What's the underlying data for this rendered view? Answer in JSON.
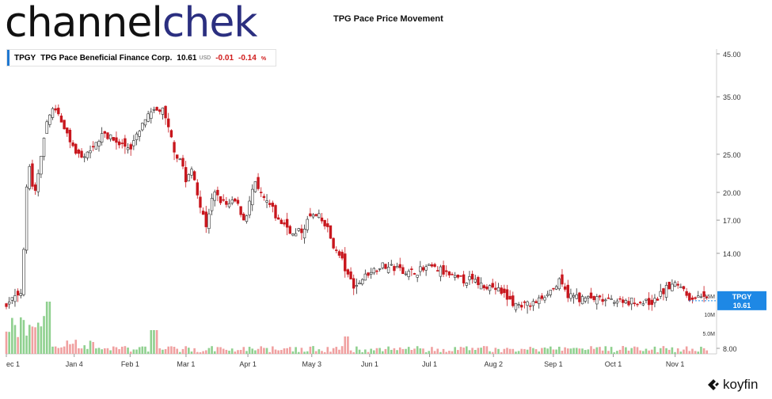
{
  "brand": {
    "name_part1": "channel",
    "name_part2": "chek"
  },
  "chart_title": "TPG Pace Price Movement",
  "quote": {
    "symbol": "TPGY",
    "company": "TPG Pace Beneficial Finance Corp.",
    "price": "10.61",
    "currency": "USD",
    "change": "-0.01",
    "change_pct": "-0.14",
    "pct_sign": "%"
  },
  "price_tag": {
    "symbol": "TPGY",
    "price": "10.61"
  },
  "footer_brand": "koyfin",
  "chart_data": {
    "type": "candlestick",
    "title": "TPG Pace Price Movement",
    "y_scale": "log",
    "y_ticks": [
      45.0,
      35.0,
      25.0,
      20.0,
      17.0,
      14.0,
      8.0
    ],
    "y_tick_labels": [
      "45.00",
      "35.00",
      "25.00",
      "20.00",
      "17.00",
      "14.00",
      "8.00"
    ],
    "volume_ticks": [
      "15M",
      "10M",
      "5.0M"
    ],
    "x_tick_labels": [
      "ec 1",
      "Jan 4",
      "Feb 1",
      "Mar 1",
      "Apr 1",
      "May 3",
      "Jun 1",
      "Jul 1",
      "Aug 2",
      "Sep 1",
      "Oct 1",
      "Nov 1"
    ],
    "price_path": [
      [
        "Dec 1",
        10.3
      ],
      [
        "Dec 5",
        10.9
      ],
      [
        "Dec 9",
        11.2
      ],
      [
        "Dec 12",
        24.5
      ],
      [
        "Dec 15",
        19.0
      ],
      [
        "Dec 19",
        26.0
      ],
      [
        "Dec 22",
        31.0
      ],
      [
        "Dec 26",
        33.0
      ],
      [
        "Dec 30",
        29.0
      ],
      [
        "Jan 4",
        25.5
      ],
      [
        "Jan 8",
        24.0
      ],
      [
        "Jan 13",
        26.5
      ],
      [
        "Jan 18",
        28.0
      ],
      [
        "Jan 22",
        27.5
      ],
      [
        "Jan 27",
        26.5
      ],
      [
        "Feb 1",
        26.0
      ],
      [
        "Feb 5",
        28.0
      ],
      [
        "Feb 9",
        31.0
      ],
      [
        "Feb 13",
        32.0
      ],
      [
        "Feb 17",
        32.5
      ],
      [
        "Feb 20",
        29.0
      ],
      [
        "Feb 24",
        25.0
      ],
      [
        "Feb 27",
        24.0
      ],
      [
        "Mar 1",
        21.0
      ],
      [
        "Mar 4",
        23.0
      ],
      [
        "Mar 8",
        18.5
      ],
      [
        "Mar 11",
        16.5
      ],
      [
        "Mar 15",
        20.0
      ],
      [
        "Mar 18",
        19.0
      ],
      [
        "Mar 22",
        18.5
      ],
      [
        "Mar 26",
        19.0
      ],
      [
        "Mar 30",
        17.0
      ],
      [
        "Apr 1",
        18.0
      ],
      [
        "Apr 4",
        21.0
      ],
      [
        "Apr 8",
        19.5
      ],
      [
        "Apr 12",
        18.5
      ],
      [
        "Apr 16",
        17.0
      ],
      [
        "Apr 20",
        16.5
      ],
      [
        "Apr 24",
        15.5
      ],
      [
        "Apr 28",
        16.0
      ],
      [
        "May 1",
        17.0
      ],
      [
        "May 3",
        17.5
      ],
      [
        "May 7",
        17.2
      ],
      [
        "May 11",
        16.0
      ],
      [
        "May 14",
        14.5
      ],
      [
        "May 18",
        13.5
      ],
      [
        "May 21",
        12.2
      ],
      [
        "May 25",
        11.5
      ],
      [
        "May 28",
        12.0
      ],
      [
        "Jun 1",
        12.6
      ],
      [
        "Jun 7",
        13.0
      ],
      [
        "Jun 14",
        12.8
      ],
      [
        "Jun 21",
        12.5
      ],
      [
        "Jun 28",
        12.7
      ],
      [
        "Jul 1",
        13.0
      ],
      [
        "Jul 6",
        12.7
      ],
      [
        "Jul 11",
        12.3
      ],
      [
        "Jul 16",
        12.0
      ],
      [
        "Jul 21",
        12.0
      ],
      [
        "Jul 26",
        11.7
      ],
      [
        "Aug 2",
        11.5
      ],
      [
        "Aug 7",
        11.0
      ],
      [
        "Aug 12",
        10.4
      ],
      [
        "Aug 18",
        10.3
      ],
      [
        "Aug 23",
        10.5
      ],
      [
        "Aug 28",
        11.0
      ],
      [
        "Sep 1",
        11.4
      ],
      [
        "Sep 4",
        11.8
      ],
      [
        "Sep 8",
        11.0
      ],
      [
        "Sep 14",
        10.8
      ],
      [
        "Sep 21",
        10.7
      ],
      [
        "Sep 28",
        10.6
      ],
      [
        "Oct 1",
        10.7
      ],
      [
        "Oct 8",
        10.6
      ],
      [
        "Oct 15",
        10.5
      ],
      [
        "Oct 22",
        10.6
      ],
      [
        "Oct 27",
        11.3
      ],
      [
        "Nov 1",
        11.7
      ],
      [
        "Nov 4",
        11.6
      ],
      [
        "Nov 8",
        10.8
      ],
      [
        "Nov 12",
        10.8
      ],
      [
        "Nov 17",
        10.61
      ]
    ],
    "last_price": 10.61,
    "colors": {
      "up": "#2a2a2a",
      "down": "#c8161d",
      "vol_up": "#8fd08f",
      "vol_down": "#f0a0a0",
      "tag": "#1e88e5"
    },
    "legend": "none",
    "grid": false
  }
}
